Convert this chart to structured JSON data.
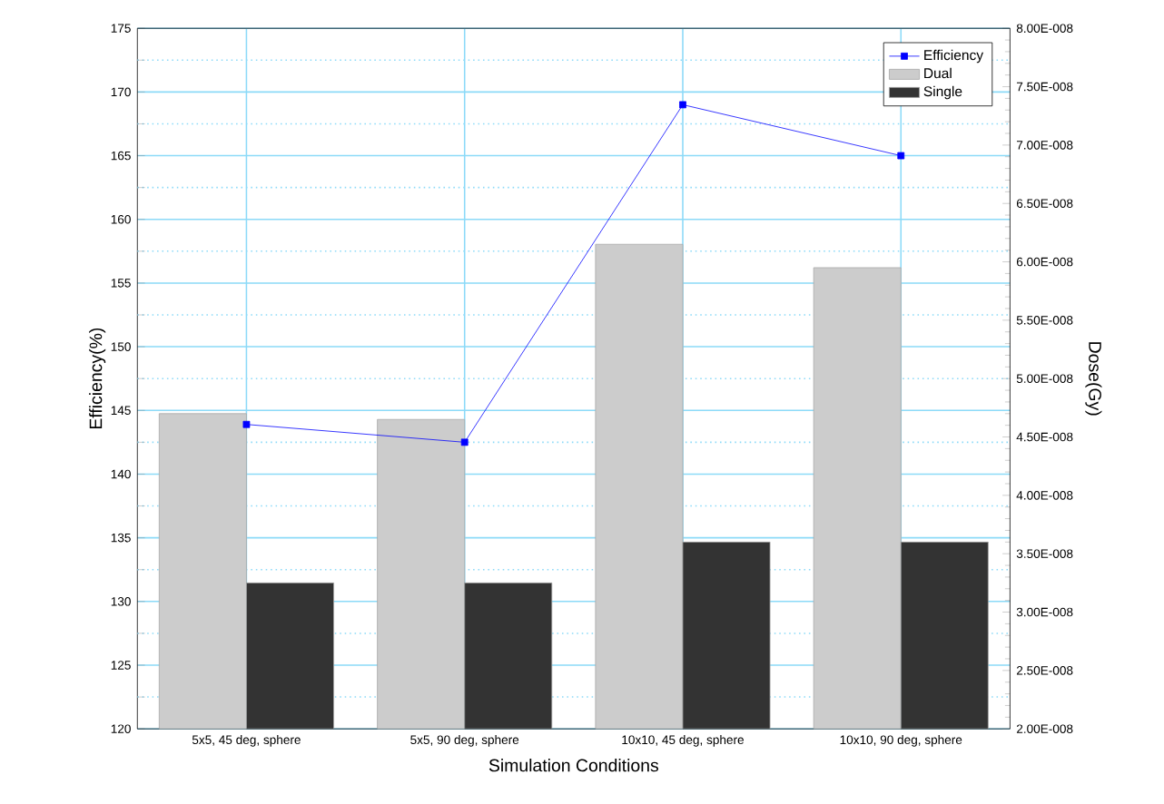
{
  "chart_data": {
    "type": "bar",
    "xlabel": "Simulation Conditions",
    "ylabel": "Efficiency(%)",
    "y2label": "Dose(Gy)",
    "categories": [
      "5x5, 45 deg, sphere",
      "5x5, 90 deg, sphere",
      "10x10, 45 deg, sphere",
      "10x10, 90 deg, sphere"
    ],
    "series": [
      {
        "name": "Efficiency",
        "type": "line",
        "axis": "y",
        "color": "#0000ff",
        "values": [
          143.9,
          142.5,
          169.0,
          165.0
        ]
      },
      {
        "name": "Dual",
        "axis": "y2",
        "color": "#cccccc",
        "values": [
          4.7e-08,
          4.65e-08,
          6.15e-08,
          5.95e-08
        ]
      },
      {
        "name": "Single",
        "axis": "y2",
        "color": "#333333",
        "values": [
          3.25e-08,
          3.25e-08,
          3.6e-08,
          3.6e-08
        ]
      }
    ],
    "ylim": [
      120,
      175
    ],
    "yticks": [
      120,
      {
        "value": 122.5,
        "label": null
      },
      125,
      {
        "value": 127.5,
        "label": null
      },
      130,
      {
        "value": 132.5,
        "label": null
      },
      135,
      {
        "value": 137.5,
        "label": null
      },
      140,
      {
        "value": 142.5,
        "label": null
      },
      145,
      {
        "value": 147.5,
        "label": null
      },
      150,
      {
        "value": 152.5,
        "label": null
      },
      155,
      {
        "value": 157.5,
        "label": null
      },
      160,
      {
        "value": 162.5,
        "label": null
      },
      165,
      {
        "value": 167.5,
        "label": null
      },
      170,
      {
        "value": 172.5,
        "label": null
      },
      175
    ],
    "y2lim": [
      2e-08,
      8e-08
    ],
    "y2ticks": [
      {
        "value": 2e-08,
        "label": "2.00E-008"
      },
      {
        "value": 2.5e-08,
        "label": "2.50E-008"
      },
      {
        "value": 3e-08,
        "label": "3.00E-008"
      },
      {
        "value": 3.5e-08,
        "label": "3.50E-008"
      },
      {
        "value": 4e-08,
        "label": "4.00E-008"
      },
      {
        "value": 4.5e-08,
        "label": "4.50E-008"
      },
      {
        "value": 5e-08,
        "label": "5.00E-008"
      },
      {
        "value": 5.5e-08,
        "label": "5.50E-008"
      },
      {
        "value": 6e-08,
        "label": "6.00E-008"
      },
      {
        "value": 6.5e-08,
        "label": "6.50E-008"
      },
      {
        "value": 7e-08,
        "label": "7.00E-008"
      },
      {
        "value": 7.5e-08,
        "label": "7.50E-008"
      },
      {
        "value": 8e-08,
        "label": "8.00E-008"
      }
    ],
    "grid": true,
    "legend": "top right",
    "marker": "square"
  }
}
